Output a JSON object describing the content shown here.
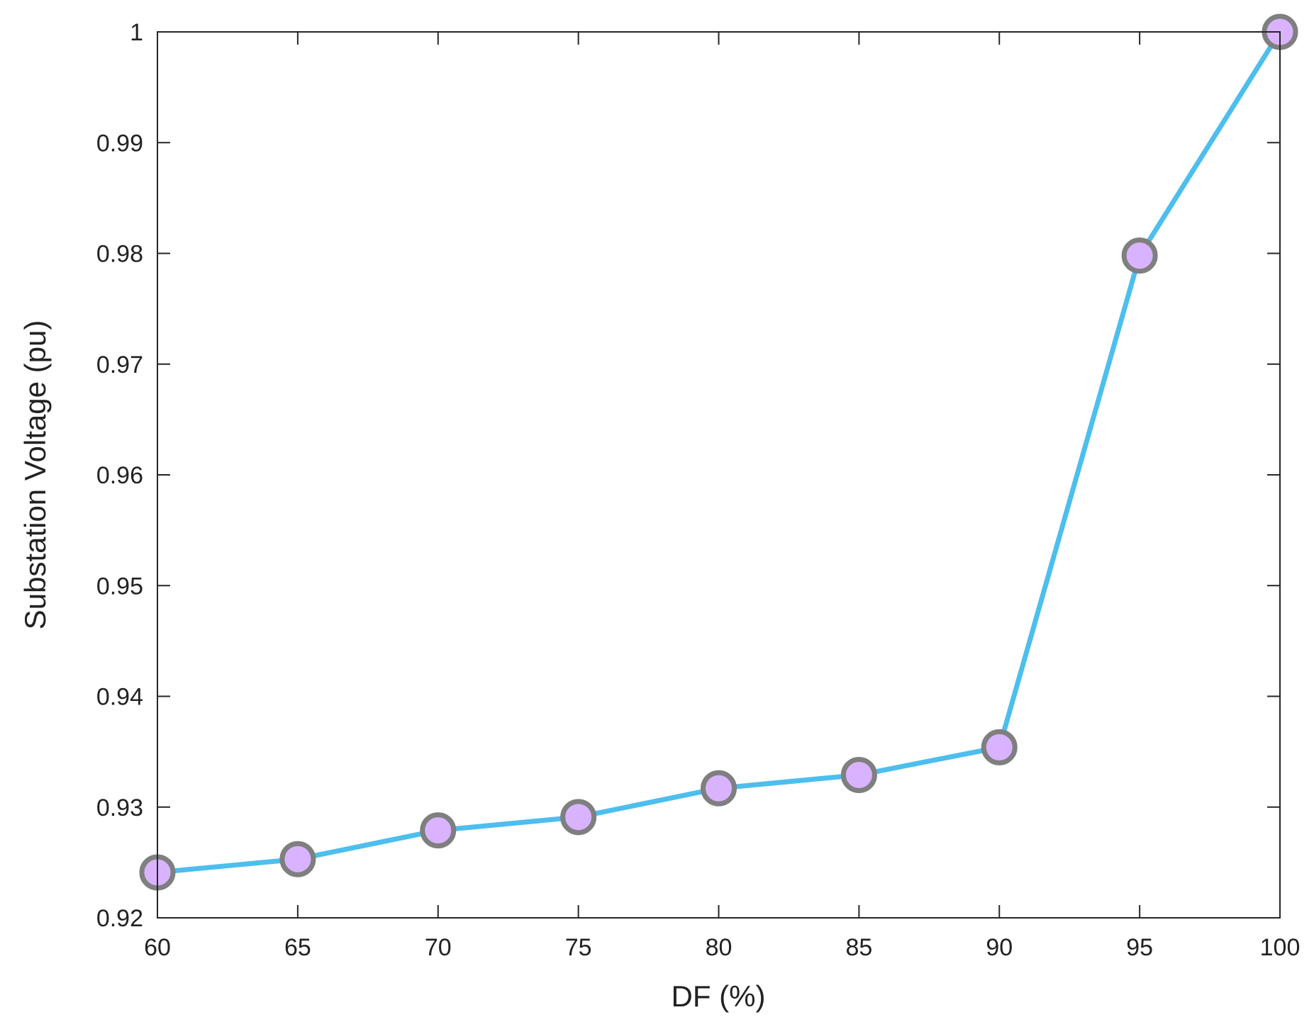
{
  "chart_data": {
    "type": "line",
    "title": "",
    "xlabel": "DF (%)",
    "ylabel": "Substation Voltage (pu)",
    "xlim": [
      60,
      100
    ],
    "ylim": [
      0.92,
      1.0
    ],
    "x_ticks": [
      "60",
      "65",
      "70",
      "75",
      "80",
      "85",
      "90",
      "95",
      "100"
    ],
    "y_ticks": [
      "0.92",
      "0.93",
      "0.94",
      "0.95",
      "0.96",
      "0.97",
      "0.98",
      "0.99",
      "1"
    ],
    "grid": false,
    "series": [
      {
        "x": [
          60,
          65,
          70,
          75,
          80,
          85,
          90,
          95,
          100
        ],
        "values": [
          0.9241,
          0.9253,
          0.9279,
          0.9291,
          0.9317,
          0.9329,
          0.9354,
          0.9798,
          1.0
        ],
        "line_color": "#4DBEEE",
        "marker_fill": "#D9B3FF",
        "marker_edge": "#7F7F7F"
      }
    ]
  }
}
